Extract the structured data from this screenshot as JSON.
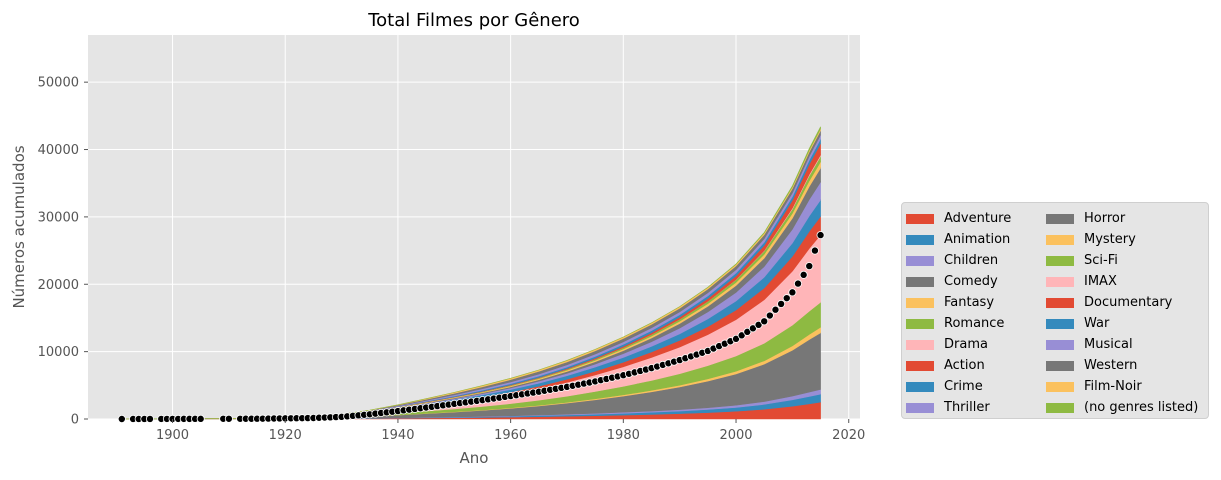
{
  "chart_data": {
    "type": "area",
    "stacked": true,
    "title": "Total Filmes por Gênero",
    "xlabel": "Ano",
    "ylabel": "Números acumulados",
    "xlim": [
      1885,
      2022
    ],
    "ylim": [
      0,
      57000
    ],
    "xticks": [
      1900,
      1920,
      1940,
      1960,
      1980,
      2000,
      2020
    ],
    "yticks": [
      0,
      10000,
      20000,
      30000,
      40000,
      50000
    ],
    "grid": true,
    "legend_position": "lower right, outside plot",
    "x": [
      1891,
      1915,
      1925,
      1930,
      1935,
      1940,
      1945,
      1950,
      1955,
      1960,
      1965,
      1970,
      1975,
      1980,
      1985,
      1990,
      1995,
      2000,
      2005,
      2010,
      2013,
      2015
    ],
    "series": [
      {
        "name": "Adventure",
        "color": "#E24A33",
        "values": [
          0,
          5,
          20,
          40,
          70,
          110,
          150,
          190,
          230,
          280,
          340,
          410,
          490,
          580,
          680,
          800,
          950,
          1150,
          1450,
          1900,
          2250,
          2500
        ]
      },
      {
        "name": "Animation",
        "color": "#348ABD",
        "values": [
          0,
          2,
          5,
          15,
          25,
          40,
          60,
          80,
          100,
          130,
          160,
          190,
          230,
          270,
          320,
          380,
          460,
          560,
          720,
          950,
          1100,
          1200
        ]
      },
      {
        "name": "Children",
        "color": "#988ED5",
        "values": [
          0,
          2,
          5,
          10,
          15,
          25,
          35,
          45,
          55,
          70,
          90,
          110,
          130,
          150,
          180,
          220,
          270,
          330,
          420,
          560,
          650,
          700
        ]
      },
      {
        "name": "Comedy",
        "color": "#777777",
        "values": [
          0,
          15,
          60,
          130,
          250,
          400,
          560,
          720,
          900,
          1100,
          1350,
          1650,
          2000,
          2400,
          2850,
          3350,
          3950,
          4650,
          5550,
          6800,
          7800,
          8400
        ]
      },
      {
        "name": "Fantasy",
        "color": "#FBC15E",
        "values": [
          0,
          2,
          5,
          10,
          15,
          25,
          35,
          45,
          60,
          75,
          95,
          120,
          150,
          180,
          220,
          270,
          330,
          400,
          500,
          650,
          760,
          830
        ]
      },
      {
        "name": "Romance",
        "color": "#8EBA42",
        "values": [
          0,
          10,
          40,
          80,
          150,
          240,
          330,
          420,
          520,
          630,
          760,
          910,
          1080,
          1270,
          1480,
          1710,
          1970,
          2260,
          2610,
          3080,
          3450,
          3700
        ]
      },
      {
        "name": "Drama",
        "color": "#FFB5B8",
        "values": [
          0,
          25,
          90,
          180,
          330,
          520,
          720,
          930,
          1160,
          1410,
          1700,
          2050,
          2450,
          2900,
          3400,
          3950,
          4600,
          5400,
          6450,
          8000,
          9300,
          10000
        ]
      },
      {
        "name": "Action",
        "color": "#E24A33",
        "values": [
          0,
          5,
          20,
          40,
          70,
          110,
          150,
          200,
          250,
          310,
          380,
          460,
          560,
          680,
          820,
          990,
          1190,
          1430,
          1750,
          2200,
          2550,
          2750
        ]
      },
      {
        "name": "Crime",
        "color": "#348ABD",
        "values": [
          0,
          5,
          20,
          40,
          80,
          130,
          190,
          250,
          310,
          370,
          440,
          520,
          610,
          710,
          830,
          970,
          1140,
          1340,
          1600,
          1980,
          2280,
          2450
        ]
      },
      {
        "name": "Thriller",
        "color": "#988ED5",
        "values": [
          0,
          2,
          10,
          20,
          40,
          70,
          100,
          140,
          180,
          230,
          290,
          360,
          450,
          560,
          690,
          850,
          1040,
          1270,
          1580,
          2050,
          2450,
          2650
        ]
      },
      {
        "name": "Horror",
        "color": "#777777",
        "values": [
          0,
          2,
          10,
          20,
          35,
          55,
          75,
          100,
          130,
          170,
          220,
          280,
          360,
          450,
          560,
          690,
          840,
          1020,
          1250,
          1630,
          1920,
          2080
        ]
      },
      {
        "name": "Mystery",
        "color": "#FBC15E",
        "values": [
          0,
          2,
          8,
          15,
          30,
          50,
          70,
          90,
          110,
          130,
          150,
          175,
          205,
          240,
          280,
          330,
          390,
          460,
          560,
          720,
          850,
          920
        ]
      },
      {
        "name": "Sci-Fi",
        "color": "#8EBA42",
        "values": [
          0,
          2,
          5,
          10,
          15,
          25,
          35,
          50,
          70,
          90,
          110,
          135,
          165,
          200,
          240,
          290,
          345,
          410,
          500,
          640,
          760,
          820
        ]
      },
      {
        "name": "IMAX",
        "color": "#FFB5B8",
        "values": [
          0,
          0,
          0,
          0,
          0,
          0,
          0,
          0,
          0,
          0,
          0,
          0,
          0,
          0,
          0,
          0,
          5,
          20,
          60,
          140,
          190,
          196
        ]
      },
      {
        "name": "Documentary",
        "color": "#E24A33",
        "values": [
          0,
          2,
          5,
          10,
          15,
          20,
          30,
          40,
          55,
          70,
          90,
          115,
          150,
          195,
          250,
          320,
          410,
          540,
          760,
          1150,
          1500,
          1700
        ]
      },
      {
        "name": "War",
        "color": "#348ABD",
        "values": [
          0,
          2,
          5,
          10,
          20,
          40,
          80,
          110,
          140,
          170,
          200,
          230,
          260,
          290,
          320,
          350,
          385,
          420,
          470,
          550,
          610,
          650
        ]
      },
      {
        "name": "Musical",
        "color": "#988ED5",
        "values": [
          0,
          2,
          10,
          30,
          60,
          100,
          140,
          180,
          220,
          260,
          290,
          320,
          350,
          380,
          410,
          440,
          470,
          500,
          530,
          570,
          600,
          620
        ]
      },
      {
        "name": "Western",
        "color": "#777777",
        "values": [
          0,
          5,
          20,
          40,
          70,
          110,
          160,
          220,
          290,
          350,
          400,
          440,
          470,
          490,
          510,
          530,
          550,
          570,
          590,
          620,
          640,
          650
        ]
      },
      {
        "name": "Film-Noir",
        "color": "#FBC15E",
        "values": [
          0,
          0,
          2,
          5,
          15,
          40,
          90,
          140,
          180,
          200,
          210,
          215,
          220,
          225,
          230,
          235,
          240,
          245,
          250,
          255,
          260,
          265
        ]
      },
      {
        "name": "(no genres listed)",
        "color": "#8EBA42",
        "values": [
          0,
          0,
          0,
          0,
          0,
          0,
          0,
          0,
          0,
          0,
          0,
          0,
          0,
          0,
          5,
          10,
          20,
          40,
          80,
          160,
          230,
          300
        ]
      }
    ],
    "points_series": {
      "marker_color": "#000000",
      "x_start": 1891,
      "x_end": 2015,
      "missing_years": [
        1892,
        1897,
        1906,
        1907,
        1908,
        1911
      ],
      "anchor_x": [
        1891,
        1915,
        1925,
        1930,
        1935,
        1940,
        1945,
        1950,
        1955,
        1960,
        1965,
        1970,
        1975,
        1980,
        1985,
        1990,
        1995,
        2000,
        2005,
        2010,
        2013,
        2015
      ],
      "anchor_y": [
        0,
        40,
        150,
        320,
        700,
        1180,
        1700,
        2250,
        2800,
        3400,
        4050,
        4770,
        5580,
        6500,
        7550,
        8750,
        10100,
        11900,
        14500,
        18800,
        22700,
        27300
      ]
    }
  }
}
